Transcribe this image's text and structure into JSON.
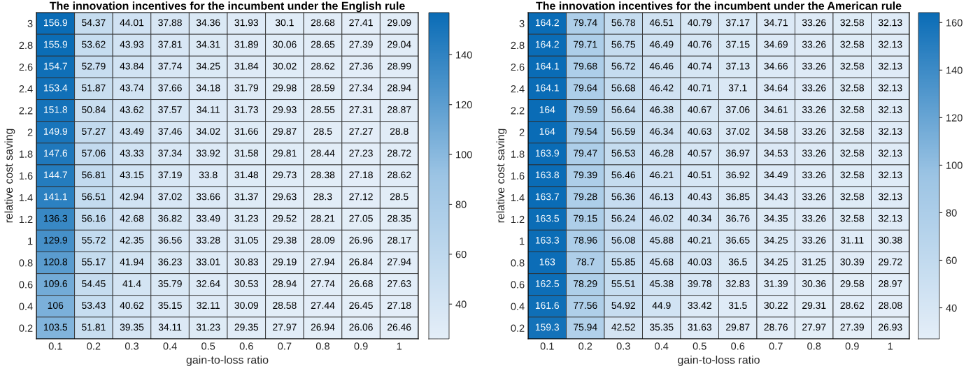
{
  "chart_data": [
    {
      "type": "heatmap",
      "title": "The innovation incentives for the incumbent under the English rule",
      "xlabel": "gain-to-loss ratio",
      "ylabel": "relative cost saving",
      "categories": [
        "0.1",
        "0.2",
        "0.3",
        "0.4",
        "0.5",
        "0.6",
        "0.7",
        "0.8",
        "0.9",
        "1"
      ],
      "y_categories": [
        "3",
        "2.8",
        "2.6",
        "2.4",
        "2.2",
        "2",
        "1.8",
        "1.6",
        "1.4",
        "1.2",
        "1",
        "0.8",
        "0.6",
        "0.4",
        "0.2"
      ],
      "cells": [
        [
          156.9,
          54.37,
          44.01,
          37.88,
          34.36,
          31.93,
          30.1,
          28.68,
          27.41,
          29.09
        ],
        [
          155.9,
          53.62,
          43.93,
          37.81,
          34.31,
          31.89,
          30.06,
          28.65,
          27.39,
          29.04
        ],
        [
          154.7,
          52.79,
          43.84,
          37.74,
          34.25,
          31.84,
          30.02,
          28.62,
          27.36,
          28.99
        ],
        [
          153.4,
          51.87,
          43.74,
          37.66,
          34.18,
          31.79,
          29.98,
          28.59,
          27.34,
          28.94
        ],
        [
          151.8,
          50.84,
          43.62,
          37.57,
          34.11,
          31.73,
          29.93,
          28.55,
          27.31,
          28.87
        ],
        [
          149.9,
          57.27,
          43.49,
          37.46,
          34.02,
          31.66,
          29.87,
          28.5,
          27.27,
          28.8
        ],
        [
          147.6,
          57.06,
          43.33,
          37.34,
          33.92,
          31.58,
          29.81,
          28.44,
          27.23,
          28.72
        ],
        [
          144.7,
          56.81,
          43.15,
          37.19,
          33.8,
          31.48,
          29.73,
          28.38,
          27.18,
          28.62
        ],
        [
          141.1,
          56.51,
          42.94,
          37.02,
          33.66,
          31.37,
          29.63,
          28.3,
          27.12,
          28.5
        ],
        [
          136.3,
          56.16,
          42.68,
          36.82,
          33.49,
          31.23,
          29.52,
          28.21,
          27.05,
          28.35
        ],
        [
          129.9,
          55.72,
          42.35,
          36.56,
          33.28,
          31.05,
          29.38,
          28.09,
          26.96,
          28.17
        ],
        [
          120.8,
          55.17,
          41.94,
          36.23,
          33.01,
          30.83,
          29.19,
          27.94,
          26.84,
          27.94
        ],
        [
          109.6,
          54.45,
          41.4,
          35.79,
          32.64,
          30.53,
          28.94,
          27.74,
          26.68,
          27.63
        ],
        [
          106,
          53.43,
          40.62,
          35.15,
          32.11,
          30.09,
          28.58,
          27.44,
          26.45,
          27.18
        ],
        [
          103.5,
          51.81,
          39.35,
          34.11,
          31.23,
          29.35,
          27.97,
          26.94,
          26.06,
          26.46
        ]
      ],
      "clim": [
        26.06,
        156.9
      ],
      "cticks": [
        40,
        60,
        80,
        100,
        120,
        140
      ],
      "data_labels": true
    },
    {
      "type": "heatmap",
      "title": "The innovation incentives for the incumbent under the American rule",
      "xlabel": "gain-to-loss ratio",
      "ylabel": "relative cost saving",
      "categories": [
        "0.1",
        "0.2",
        "0.3",
        "0.4",
        "0.5",
        "0.6",
        "0.7",
        "0.8",
        "0.9",
        "1"
      ],
      "y_categories": [
        "3",
        "2.8",
        "2.6",
        "2.4",
        "2.2",
        "2",
        "1.8",
        "1.6",
        "1.4",
        "1.2",
        "1",
        "0.8",
        "0.6",
        "0.4",
        "0.2"
      ],
      "cells": [
        [
          164.2,
          79.74,
          56.78,
          46.51,
          40.79,
          37.17,
          34.71,
          33.26,
          32.58,
          32.13
        ],
        [
          164.2,
          79.71,
          56.75,
          46.49,
          40.76,
          37.15,
          34.69,
          33.26,
          32.58,
          32.13
        ],
        [
          164.1,
          79.68,
          56.72,
          46.46,
          40.74,
          37.13,
          34.66,
          33.26,
          32.58,
          32.13
        ],
        [
          164.1,
          79.64,
          56.68,
          46.42,
          40.71,
          37.1,
          34.64,
          33.26,
          32.58,
          32.13
        ],
        [
          164,
          79.59,
          56.64,
          46.38,
          40.67,
          37.06,
          34.61,
          33.26,
          32.58,
          32.13
        ],
        [
          164,
          79.54,
          56.59,
          46.34,
          40.63,
          37.02,
          34.58,
          33.26,
          32.58,
          32.13
        ],
        [
          163.9,
          79.47,
          56.53,
          46.28,
          40.57,
          36.97,
          34.53,
          33.26,
          32.58,
          32.13
        ],
        [
          163.8,
          79.39,
          56.46,
          46.21,
          40.51,
          36.92,
          34.49,
          33.26,
          32.58,
          32.13
        ],
        [
          163.7,
          79.28,
          56.36,
          46.13,
          40.43,
          36.85,
          34.43,
          33.26,
          32.58,
          32.13
        ],
        [
          163.5,
          79.15,
          56.24,
          46.02,
          40.34,
          36.76,
          34.35,
          33.26,
          32.58,
          32.13
        ],
        [
          163.3,
          78.96,
          56.08,
          45.88,
          40.21,
          36.65,
          34.25,
          33.26,
          31.11,
          30.38
        ],
        [
          163,
          78.7,
          55.85,
          45.68,
          40.03,
          36.5,
          34.25,
          31.25,
          30.39,
          29.72
        ],
        [
          162.5,
          78.29,
          55.51,
          45.38,
          39.78,
          32.83,
          31.39,
          30.36,
          29.58,
          28.97
        ],
        [
          161.6,
          77.56,
          54.92,
          44.9,
          33.42,
          31.5,
          30.22,
          29.31,
          28.62,
          28.08
        ],
        [
          159.3,
          75.94,
          42.52,
          35.35,
          31.63,
          29.87,
          28.76,
          27.97,
          27.39,
          26.93
        ]
      ],
      "clim": [
        26.93,
        164.2
      ],
      "cticks": [
        40,
        60,
        80,
        100,
        120,
        140,
        160
      ],
      "data_labels": true
    }
  ]
}
